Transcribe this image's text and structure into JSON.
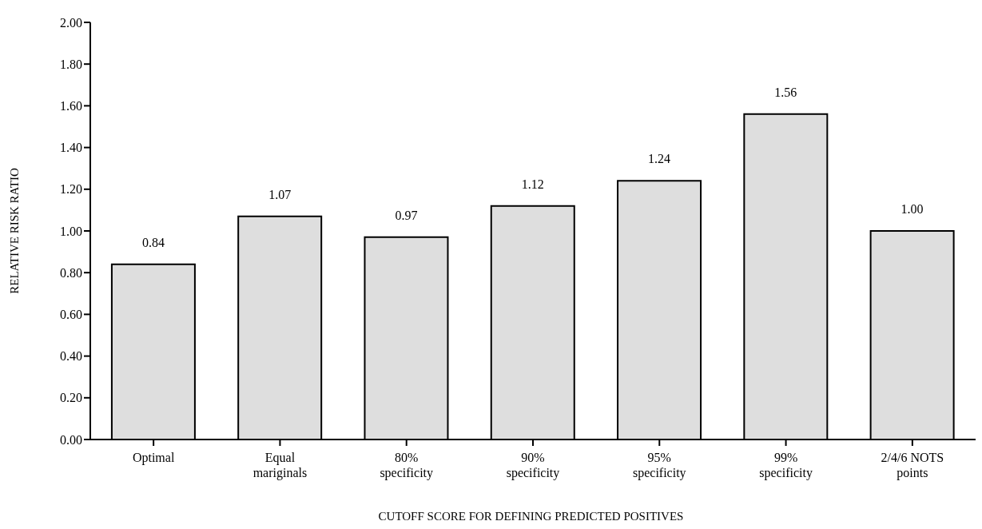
{
  "chart_data": {
    "type": "bar",
    "xlabel": "CUTOFF SCORE FOR DEFINING PREDICTED POSITIVES",
    "ylabel": "RELATIVE RISK RATIO",
    "categories": [
      "Optimal",
      "Equal mariginals",
      "80% specificity",
      "90% specificity",
      "95% specificity",
      "99% specificity",
      "2/4/6 NOTS points"
    ],
    "values": [
      0.84,
      1.07,
      0.97,
      1.12,
      1.24,
      1.56,
      1.0
    ],
    "value_labels": [
      "0.84",
      "1.07",
      "0.97",
      "1.12",
      "1.24",
      "1.56",
      "1.00"
    ],
    "color": "#dedede",
    "ylim": [
      0,
      2
    ],
    "yticks": [
      {
        "value": 0,
        "label": "0.00"
      },
      {
        "value": 0.2,
        "label": "0.20"
      },
      {
        "value": 0.4,
        "label": "0.40"
      },
      {
        "value": 0.6,
        "label": "0.60"
      },
      {
        "value": 0.8,
        "label": "0.80"
      },
      {
        "value": 1,
        "label": "1.00"
      },
      {
        "value": 1.2,
        "label": "1.20"
      },
      {
        "value": 1.4,
        "label": "1.40"
      },
      {
        "value": 1.6,
        "label": "1.60"
      },
      {
        "value": 1.8,
        "label": "1.80"
      },
      {
        "value": 2,
        "label": "2.00"
      }
    ]
  }
}
